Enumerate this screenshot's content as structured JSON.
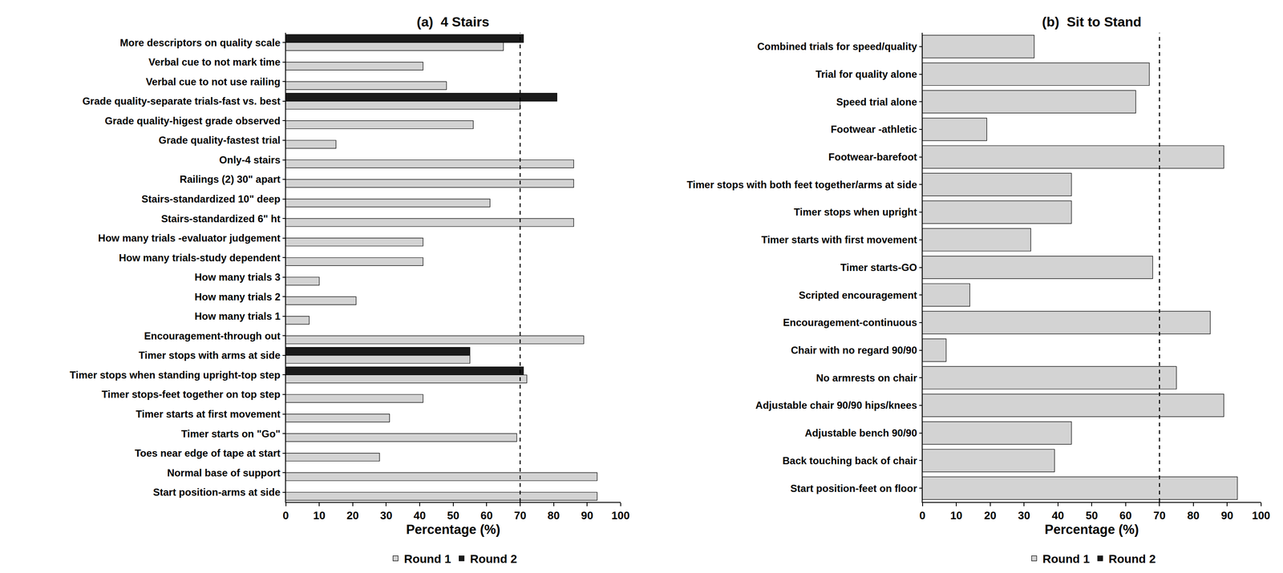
{
  "chart_data": [
    {
      "type": "bar",
      "orientation": "horizontal",
      "title": "(a)  4 Stairs",
      "x_label": "Percentage (%)",
      "categories": [
        "More descriptors on quality scale",
        "Verbal cue to not mark time",
        "Verbal cue to not use railing",
        "Grade quality-separate trials-fast vs. best",
        "Grade quality-higest grade observed",
        "Grade quality-fastest trial",
        "Only-4 stairs",
        "Railings (2) 30\" apart",
        "Stairs-standardized 10\" deep",
        "Stairs-standardized 6\" ht",
        "How many trials -evaluator judgement",
        "How many trials-study dependent",
        "How many trials 3",
        "How many trials 2",
        "How many trials 1",
        "Encouragement-through out",
        "Timer stops with arms at side",
        "Timer stops when standing upright-top step",
        "Timer stops-feet together on top step",
        "Timer starts at first movement",
        "Timer starts on \"Go\"",
        "Toes near edge of tape at start",
        "Normal base of support",
        "Start position-arms at side"
      ],
      "series": [
        {
          "name": "Round 1",
          "color": "#d3d3d3",
          "values": [
            65,
            41,
            48,
            70,
            56,
            15,
            86,
            86,
            61,
            86,
            41,
            41,
            10,
            21,
            7,
            89,
            55,
            72,
            41,
            31,
            69,
            28,
            93,
            93
          ]
        },
        {
          "name": "Round 2",
          "color": "#1a1a1a",
          "values": [
            71,
            null,
            null,
            81,
            null,
            null,
            null,
            null,
            null,
            null,
            null,
            null,
            null,
            null,
            null,
            null,
            55,
            71,
            null,
            null,
            null,
            null,
            null,
            null
          ]
        }
      ],
      "xlim": [
        0,
        100
      ],
      "xticks": [
        0,
        10,
        20,
        30,
        40,
        50,
        60,
        70,
        80,
        90,
        100
      ],
      "reference_line": 70,
      "legend": "bottom"
    },
    {
      "type": "bar",
      "orientation": "horizontal",
      "title": "(b)  Sit to Stand",
      "x_label": "Percentage (%)",
      "categories": [
        "Combined trials for speed/quality",
        "Trial for quality alone",
        "Speed trial alone",
        "Footwear -athletic",
        "Footwear-barefoot",
        "Timer stops with both feet together/arms at side",
        "Timer stops when upright",
        "Timer starts with first movement",
        "Timer starts-GO",
        "Scripted encouragement",
        "Encouragement-continuous",
        "Chair with no regard 90/90",
        "No armrests on chair",
        "Adjustable chair 90/90 hips/knees",
        "Adjustable bench 90/90",
        "Back touching back of chair",
        "Start position-feet on floor"
      ],
      "series": [
        {
          "name": "Round 1",
          "color": "#d3d3d3",
          "values": [
            33,
            67,
            63,
            19,
            89,
            44,
            44,
            32,
            68,
            14,
            85,
            7,
            75,
            89,
            44,
            39,
            93
          ]
        },
        {
          "name": "Round 2",
          "color": "#1a1a1a",
          "values": [
            null,
            null,
            null,
            null,
            null,
            null,
            null,
            null,
            null,
            null,
            null,
            null,
            null,
            null,
            null,
            null,
            null
          ]
        }
      ],
      "xlim": [
        0,
        100
      ],
      "xticks": [
        0,
        10,
        20,
        30,
        40,
        50,
        60,
        70,
        80,
        90,
        100
      ],
      "reference_line": 70,
      "legend": "bottom"
    }
  ]
}
